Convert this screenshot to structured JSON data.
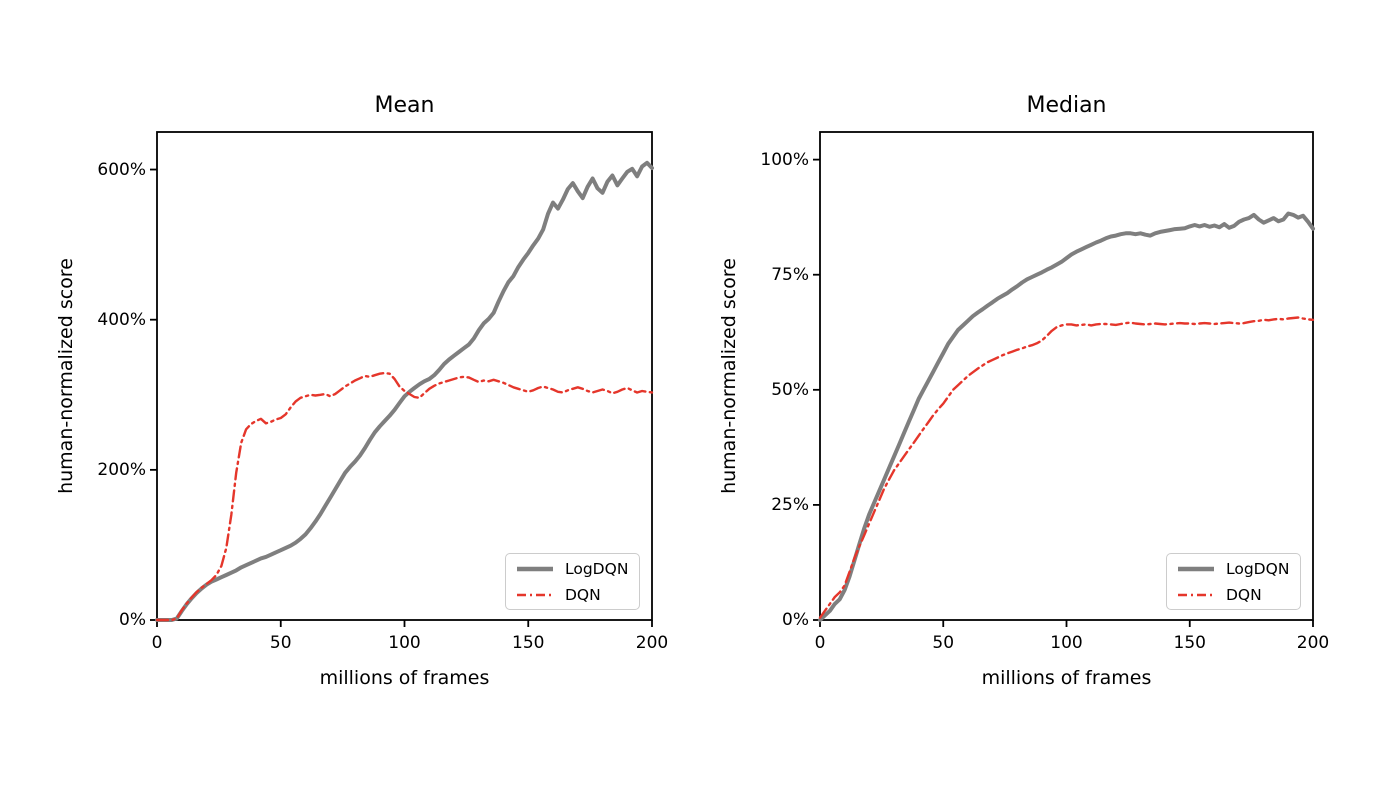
{
  "page": {
    "background": "#ffffff",
    "spine_color": "#000000",
    "text_color": "#000000"
  },
  "chart_data": [
    {
      "type": "line",
      "title": "Mean",
      "xlabel": "millions of frames",
      "ylabel": "human-normalized score",
      "xlim": [
        0,
        200
      ],
      "ylim": [
        0,
        650
      ],
      "grid": false,
      "legend_position": "lower right",
      "xticks": [
        {
          "value": 0,
          "label": "0"
        },
        {
          "value": 50,
          "label": "50"
        },
        {
          "value": 100,
          "label": "100"
        },
        {
          "value": 150,
          "label": "150"
        },
        {
          "value": 200,
          "label": "200"
        }
      ],
      "yticks": [
        {
          "value": 0,
          "label": "0%"
        },
        {
          "value": 200,
          "label": "200%"
        },
        {
          "value": 400,
          "label": "400%"
        },
        {
          "value": 600,
          "label": "600%"
        }
      ],
      "x": [
        0,
        2,
        4,
        6,
        8,
        10,
        12,
        14,
        16,
        18,
        20,
        22,
        24,
        26,
        28,
        30,
        32,
        34,
        36,
        38,
        40,
        42,
        44,
        46,
        48,
        50,
        52,
        54,
        56,
        58,
        60,
        62,
        64,
        66,
        68,
        70,
        72,
        74,
        76,
        78,
        80,
        82,
        84,
        86,
        88,
        90,
        92,
        94,
        96,
        98,
        100,
        102,
        104,
        106,
        108,
        110,
        112,
        114,
        116,
        118,
        120,
        122,
        124,
        126,
        128,
        130,
        132,
        134,
        136,
        138,
        140,
        142,
        144,
        146,
        148,
        150,
        152,
        154,
        156,
        158,
        160,
        162,
        164,
        166,
        168,
        170,
        172,
        174,
        176,
        178,
        180,
        182,
        184,
        186,
        188,
        190,
        192,
        194,
        196,
        198,
        200
      ],
      "series": [
        {
          "name": "LogDQN",
          "color": "#7f7f7f",
          "line_style": "solid",
          "line_width": 4,
          "y": [
            0,
            0,
            0,
            0,
            2,
            12,
            21,
            29,
            36,
            42,
            47,
            51,
            54,
            57,
            60,
            63,
            66,
            70,
            73,
            76,
            79,
            82,
            84,
            87,
            90,
            93,
            96,
            99,
            103,
            108,
            114,
            122,
            131,
            141,
            152,
            163,
            174,
            185,
            196,
            204,
            211,
            219,
            229,
            240,
            250,
            258,
            265,
            272,
            280,
            289,
            298,
            304,
            309,
            314,
            318,
            321,
            326,
            333,
            341,
            347,
            352,
            357,
            362,
            367,
            375,
            386,
            395,
            401,
            409,
            424,
            438,
            450,
            458,
            470,
            480,
            489,
            499,
            508,
            520,
            541,
            556,
            548,
            560,
            574,
            582,
            571,
            562,
            577,
            588,
            575,
            569,
            584,
            592,
            579,
            588,
            597,
            601,
            591,
            604,
            609,
            602
          ]
        },
        {
          "name": "DQN",
          "color": "#e5362b",
          "line_style": "dashdot",
          "line_width": 2.4,
          "y": [
            0,
            0,
            0,
            0,
            2,
            13,
            22,
            30,
            37,
            43,
            48,
            53,
            60,
            72,
            96,
            140,
            196,
            236,
            254,
            261,
            265,
            268,
            262,
            264,
            267,
            269,
            274,
            283,
            291,
            296,
            298,
            300,
            299,
            300,
            301,
            298,
            301,
            306,
            311,
            315,
            319,
            322,
            325,
            324,
            326,
            328,
            329,
            328,
            321,
            311,
            305,
            301,
            297,
            296,
            302,
            308,
            312,
            315,
            317,
            319,
            321,
            323,
            324,
            323,
            320,
            317,
            319,
            318,
            320,
            318,
            316,
            313,
            310,
            308,
            306,
            304,
            306,
            309,
            311,
            309,
            307,
            304,
            303,
            306,
            308,
            310,
            308,
            305,
            303,
            305,
            307,
            305,
            302,
            304,
            307,
            309,
            306,
            303,
            305,
            304,
            303
          ]
        }
      ]
    },
    {
      "type": "line",
      "title": "Median",
      "xlabel": "millions of frames",
      "ylabel": "human-normalized score",
      "xlim": [
        0,
        200
      ],
      "ylim": [
        0,
        106
      ],
      "grid": false,
      "legend_position": "lower right",
      "xticks": [
        {
          "value": 0,
          "label": "0"
        },
        {
          "value": 50,
          "label": "50"
        },
        {
          "value": 100,
          "label": "100"
        },
        {
          "value": 150,
          "label": "150"
        },
        {
          "value": 200,
          "label": "200"
        }
      ],
      "yticks": [
        {
          "value": 0,
          "label": "0%"
        },
        {
          "value": 25,
          "label": "25%"
        },
        {
          "value": 50,
          "label": "50%"
        },
        {
          "value": 75,
          "label": "75%"
        },
        {
          "value": 100,
          "label": "100%"
        }
      ],
      "x": [
        0,
        2,
        4,
        6,
        8,
        10,
        12,
        14,
        16,
        18,
        20,
        22,
        24,
        26,
        28,
        30,
        32,
        34,
        36,
        38,
        40,
        42,
        44,
        46,
        48,
        50,
        52,
        54,
        56,
        58,
        60,
        62,
        64,
        66,
        68,
        70,
        72,
        74,
        76,
        78,
        80,
        82,
        84,
        86,
        88,
        90,
        92,
        94,
        96,
        98,
        100,
        102,
        104,
        106,
        108,
        110,
        112,
        114,
        116,
        118,
        120,
        122,
        124,
        126,
        128,
        130,
        132,
        134,
        136,
        138,
        140,
        142,
        144,
        146,
        148,
        150,
        152,
        154,
        156,
        158,
        160,
        162,
        164,
        166,
        168,
        170,
        172,
        174,
        176,
        178,
        180,
        182,
        184,
        186,
        188,
        190,
        192,
        194,
        196,
        198,
        200
      ],
      "series": [
        {
          "name": "LogDQN",
          "color": "#7f7f7f",
          "line_style": "solid",
          "line_width": 4,
          "y": [
            0,
            1,
            2,
            3.5,
            4.5,
            6.5,
            9.5,
            13,
            16.5,
            20,
            23,
            25.5,
            28,
            30.5,
            33,
            35.5,
            38,
            40.5,
            43,
            45.5,
            48,
            50,
            52,
            54,
            56,
            58,
            60,
            61.5,
            63,
            64,
            65,
            66,
            66.8,
            67.5,
            68.3,
            69,
            69.8,
            70.4,
            71,
            71.8,
            72.5,
            73.3,
            74,
            74.5,
            75,
            75.5,
            76.1,
            76.6,
            77.2,
            77.8,
            78.6,
            79.4,
            80,
            80.5,
            81,
            81.5,
            82,
            82.4,
            82.9,
            83.3,
            83.5,
            83.8,
            84,
            84,
            83.8,
            84,
            83.7,
            83.5,
            84,
            84.3,
            84.5,
            84.7,
            84.9,
            85,
            85.1,
            85.5,
            85.8,
            85.5,
            85.8,
            85.4,
            85.7,
            85.3,
            86,
            85.2,
            85.6,
            86.5,
            87,
            87.3,
            88,
            87,
            86.3,
            86.8,
            87.3,
            86.6,
            87,
            88.3,
            88,
            87.4,
            87.8,
            86.5,
            85
          ]
        },
        {
          "name": "DQN",
          "color": "#e5362b",
          "line_style": "dashdot",
          "line_width": 2.4,
          "y": [
            0.5,
            2,
            3.5,
            5,
            6,
            7.5,
            10.5,
            13.5,
            16,
            18.5,
            21,
            23.5,
            26,
            28.5,
            30.5,
            32.5,
            34,
            35.5,
            37,
            38.5,
            40,
            41.5,
            43,
            44.5,
            45.8,
            47,
            48.5,
            50,
            51,
            52,
            53,
            53.8,
            54.6,
            55.3,
            56,
            56.5,
            57,
            57.5,
            57.9,
            58.3,
            58.7,
            59,
            59.4,
            59.7,
            60.1,
            60.7,
            61.7,
            62.8,
            63.6,
            64,
            64.2,
            64.2,
            64,
            64.1,
            64.2,
            64,
            64.2,
            64.3,
            64.3,
            64.2,
            64.1,
            64.3,
            64.5,
            64.6,
            64.4,
            64.3,
            64.2,
            64.3,
            64.4,
            64.3,
            64.2,
            64.3,
            64.4,
            64.5,
            64.4,
            64.4,
            64.3,
            64.4,
            64.5,
            64.4,
            64.3,
            64.4,
            64.5,
            64.6,
            64.5,
            64.4,
            64.5,
            64.7,
            64.9,
            65,
            65.2,
            65.1,
            65.3,
            65.4,
            65.3,
            65.5,
            65.6,
            65.7,
            65.5,
            65.3,
            65.2
          ]
        }
      ]
    }
  ]
}
